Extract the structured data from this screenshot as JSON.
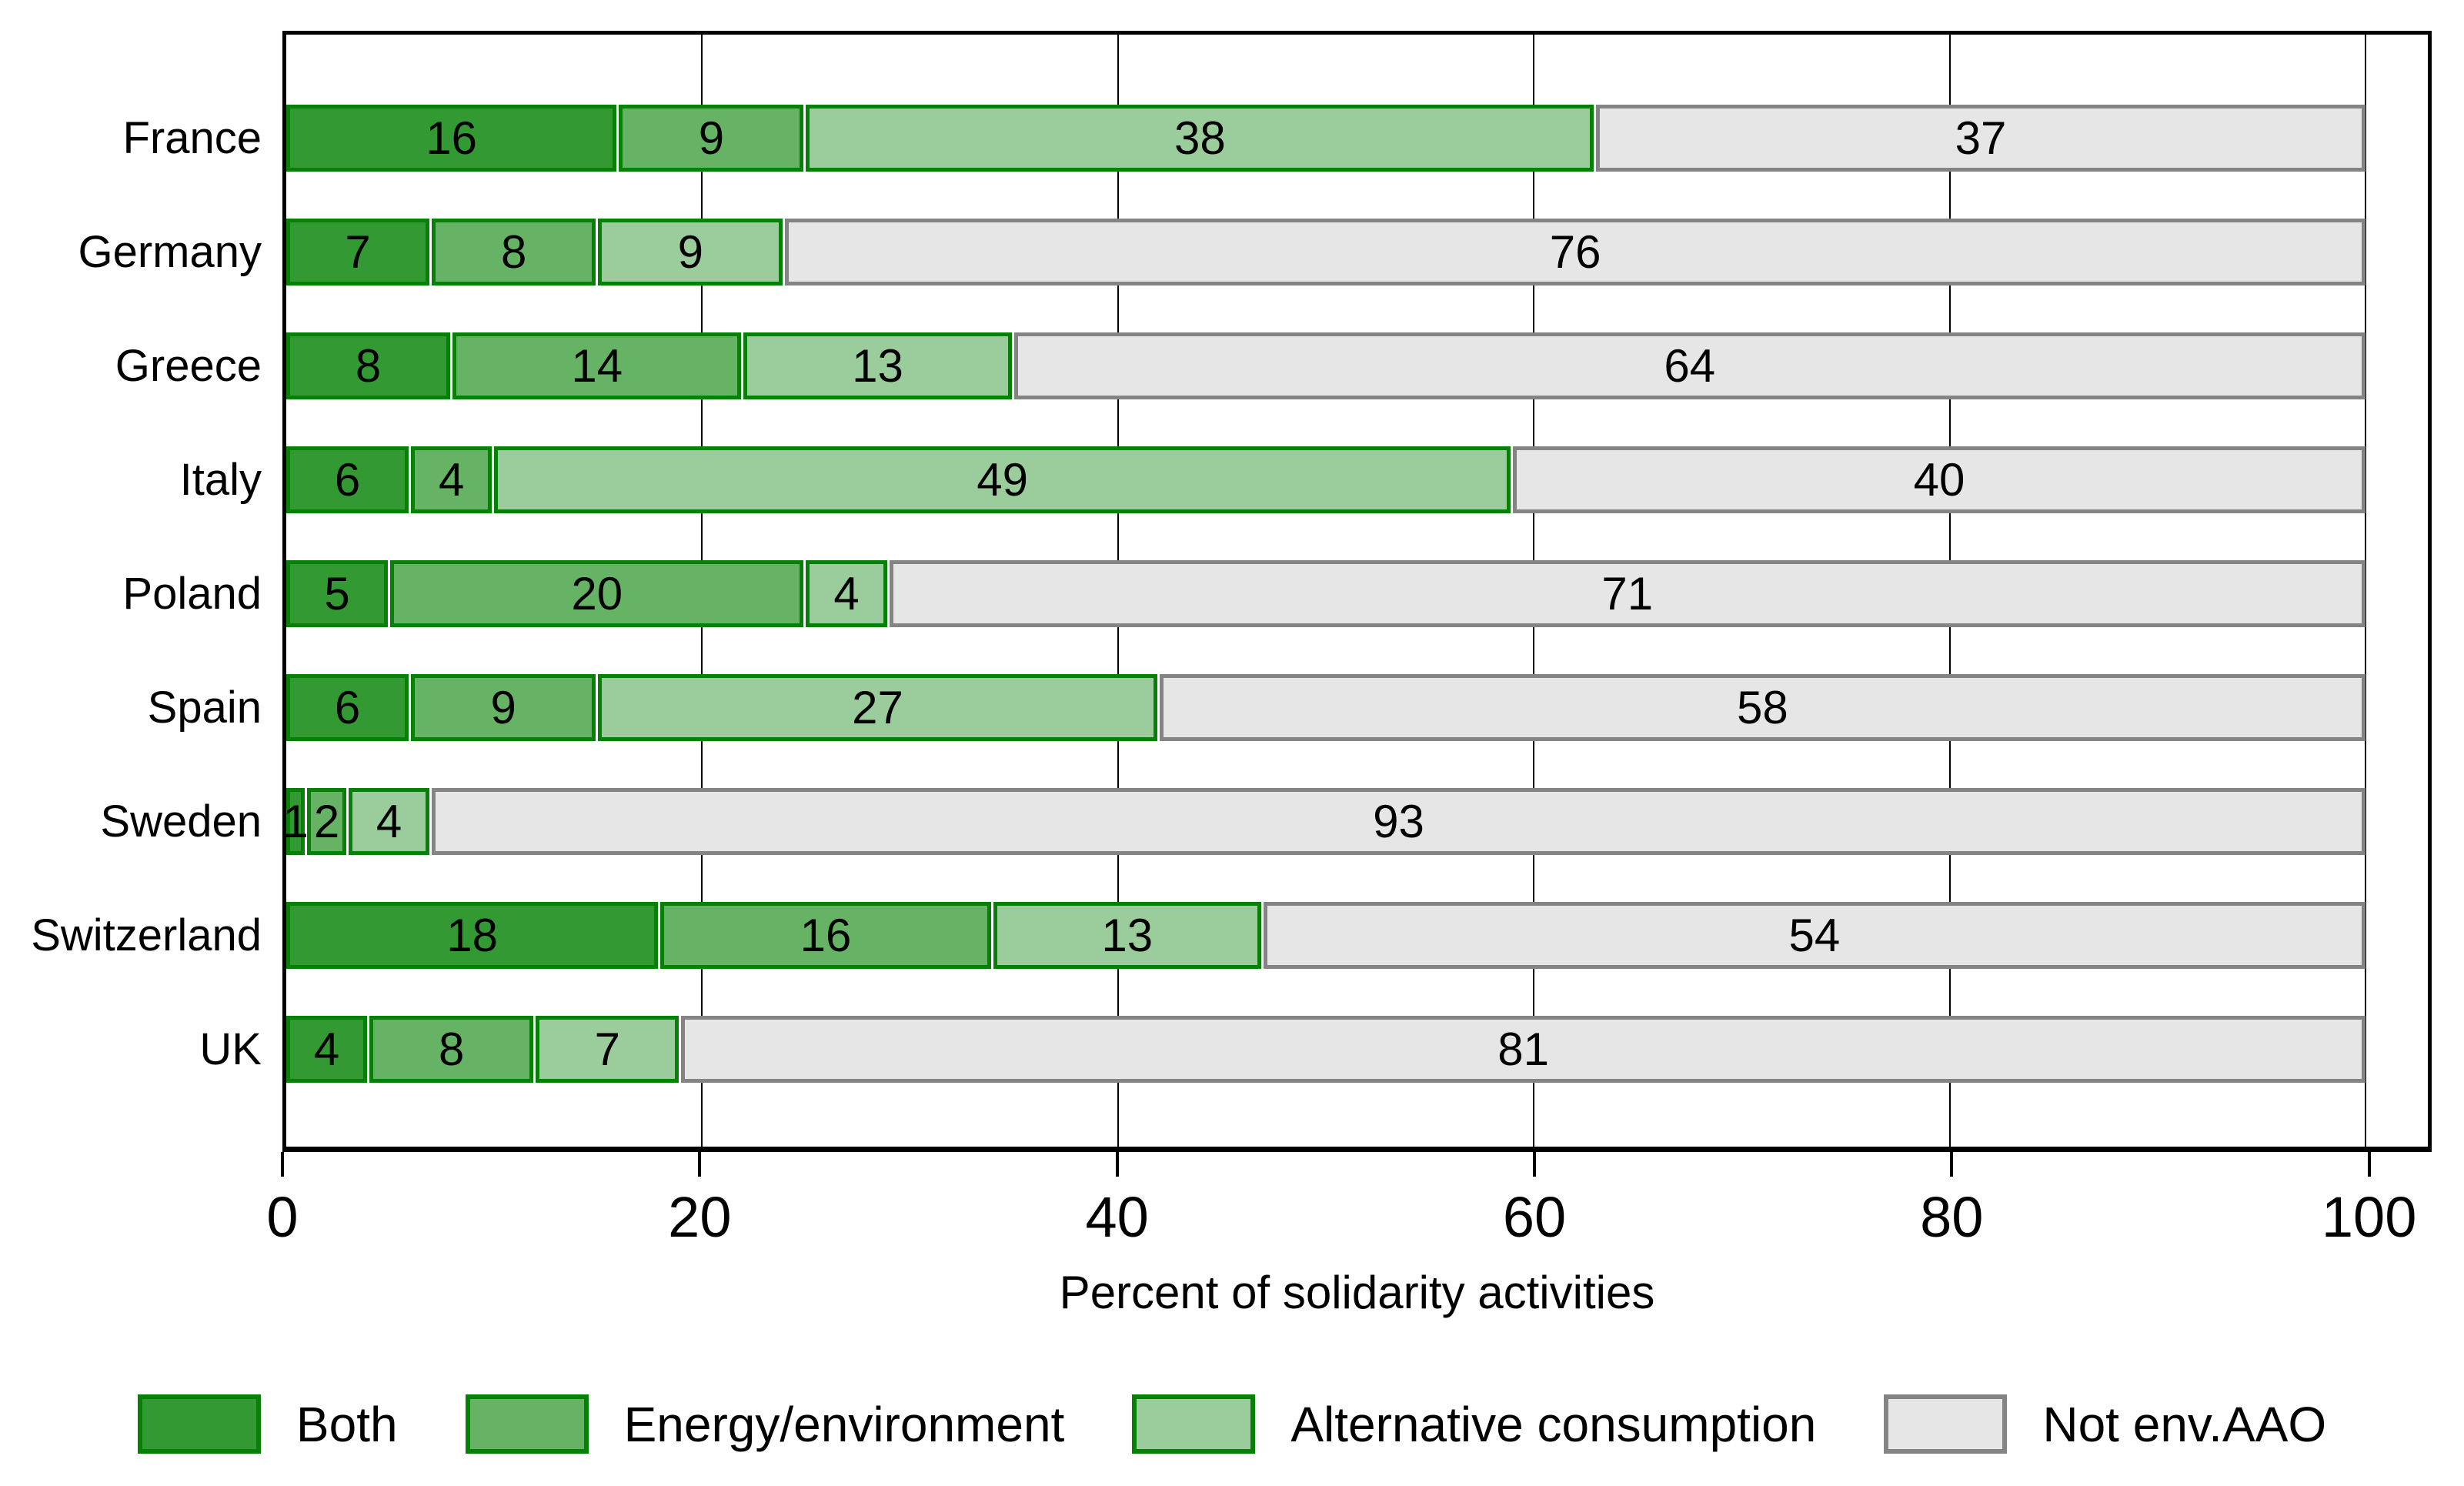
{
  "chart_data": {
    "type": "bar",
    "variant": "horizontal-stacked",
    "title": "",
    "xlabel": "Percent of solidarity activities",
    "ylabel": "",
    "xlim": [
      0,
      103
    ],
    "bar_span": [
      0,
      100
    ],
    "x_ticks": [
      "0",
      "20",
      "40",
      "60",
      "80",
      "100"
    ],
    "x_tick_values": [
      0,
      20,
      40,
      60,
      80,
      100
    ],
    "grid": true,
    "legend_position": "bottom",
    "categories": [
      "France",
      "Germany",
      "Greece",
      "Italy",
      "Poland",
      "Spain",
      "Sweden",
      "Switzerland",
      "UK"
    ],
    "series": [
      {
        "name": "Both",
        "fill": "#339a33",
        "border": "#068006",
        "values": [
          16,
          7,
          8,
          6,
          5,
          6,
          1,
          18,
          4
        ]
      },
      {
        "name": "Energy/environment",
        "fill": "#66b366",
        "border": "#068006",
        "values": [
          9,
          8,
          14,
          4,
          20,
          9,
          2,
          16,
          8
        ]
      },
      {
        "name": "Alternative consumption",
        "fill": "#9bcc9b",
        "border": "#068006",
        "values": [
          38,
          9,
          13,
          49,
          4,
          27,
          4,
          13,
          7
        ]
      },
      {
        "name": "Not env.AAO",
        "fill": "#e6e6e6",
        "border": "#848484",
        "values": [
          37,
          76,
          64,
          40,
          71,
          58,
          93,
          54,
          81
        ]
      }
    ],
    "colors": {
      "frame": "#000000",
      "gridline": "#000000",
      "text": "#000000",
      "background": "#ffffff"
    }
  }
}
